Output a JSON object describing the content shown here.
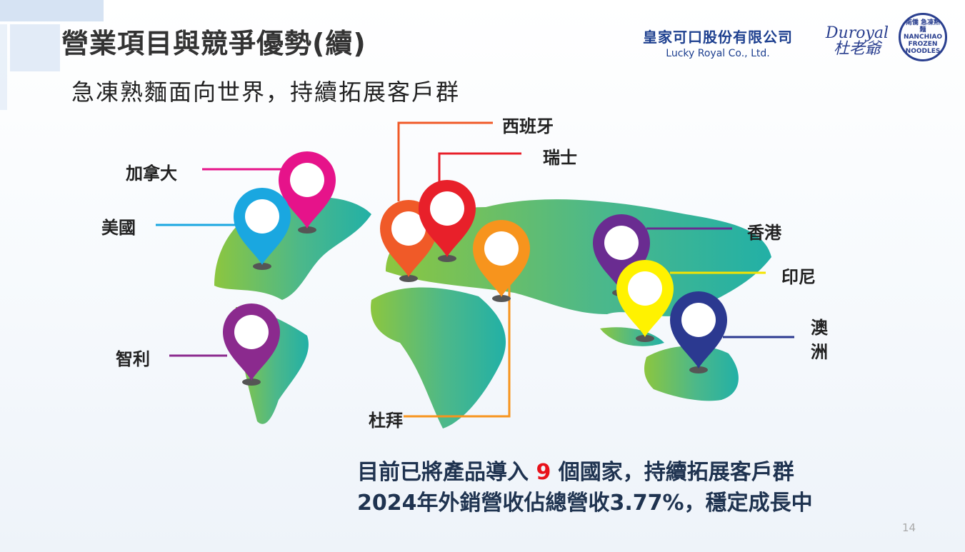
{
  "header": {
    "title": "營業項目與競爭優勢(續)",
    "subtitle": "急凍熟麵面向世界，持續拓展客戶群",
    "company_name_zh": "皇家可口股份有限公司",
    "company_name_en": "Lucky Royal Co., Ltd.",
    "brand_logo_1": "Duroyal 杜老爺",
    "brand_logo_2": "南僑 急凍熟麵 NANCHIAO FROZEN NOODLES"
  },
  "map": {
    "markers": [
      {
        "label": "加拿大",
        "color": "#e6138a"
      },
      {
        "label": "美國",
        "color": "#1aa7e0"
      },
      {
        "label": "智利",
        "color": "#8b2a8e"
      },
      {
        "label": "西班牙",
        "color": "#f05a28"
      },
      {
        "label": "瑞士",
        "color": "#e8202a"
      },
      {
        "label": "杜拜",
        "color": "#f7941d"
      },
      {
        "label": "香港",
        "color": "#6a2c91"
      },
      {
        "label": "印尼",
        "color": "#fff200"
      },
      {
        "label": "澳洲",
        "color": "#2b3990"
      }
    ]
  },
  "summary": {
    "line1_prefix": "目前已將產品導入 ",
    "line1_number": "9",
    "line1_suffix": " 個國家，持續拓展客戶群",
    "line2": "2024年外銷營收佔總營收3.77%，穩定成長中"
  },
  "page_number": "14"
}
